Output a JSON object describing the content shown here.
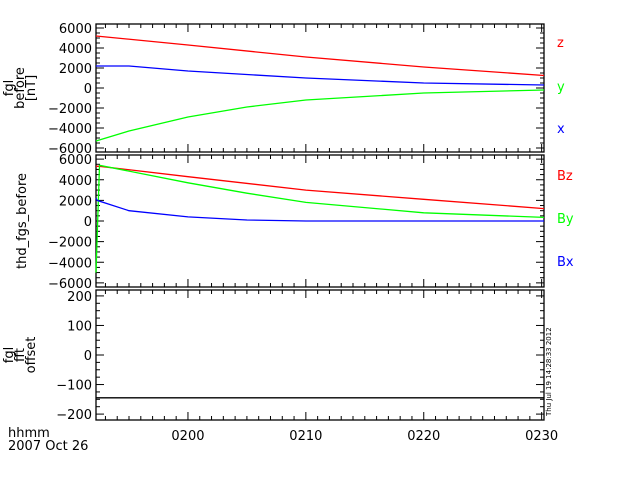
{
  "chart_data": [
    {
      "type": "line",
      "ylabel": [
        "fgl",
        "before",
        "[nT]"
      ],
      "ylim": [
        -6400,
        6400
      ],
      "yticks": [
        6000,
        4000,
        2000,
        0,
        -2000,
        -4000,
        -6000
      ],
      "ytick_labels": [
        "6000",
        "4000",
        "2000",
        "0",
        "−2000",
        "−4000",
        "−6000"
      ],
      "series": [
        {
          "name": "z",
          "color": "#ff0000",
          "x": [
            112.2,
            120,
            130,
            140,
            150.2
          ],
          "y": [
            5200,
            4300,
            3100,
            2100,
            1250
          ]
        },
        {
          "name": "y",
          "color": "#00ff00",
          "x": [
            112.2,
            115,
            120,
            125,
            130,
            140,
            150.2
          ],
          "y": [
            -5300,
            -4300,
            -2900,
            -1900,
            -1200,
            -500,
            -200
          ]
        },
        {
          "name": "x",
          "color": "#0000ff",
          "x": [
            112.2,
            115,
            120,
            130,
            140,
            150.2
          ],
          "y": [
            2200,
            2200,
            1700,
            1000,
            500,
            300
          ]
        }
      ]
    },
    {
      "type": "line",
      "ylabel": [
        "thd_fgs_before"
      ],
      "ylim": [
        -6400,
        6400
      ],
      "yticks": [
        6000,
        4000,
        2000,
        0,
        -2000,
        -4000,
        -6000
      ],
      "ytick_labels": [
        "6000",
        "4000",
        "2000",
        "0",
        "−2000",
        "−4000",
        "−6000"
      ],
      "series": [
        {
          "name": "Bz",
          "color": "#ff0000",
          "x": [
            112.2,
            112.5,
            120,
            130,
            140,
            150.2
          ],
          "y": [
            5300,
            5300,
            4300,
            3000,
            2100,
            1200
          ]
        },
        {
          "name": "By",
          "color": "#00ff00",
          "x": [
            112.2,
            112.5,
            120,
            125,
            130,
            140,
            150.2
          ],
          "y": [
            -5000,
            5400,
            3700,
            2700,
            1800,
            800,
            350
          ]
        },
        {
          "name": "Bx",
          "color": "#0000ff",
          "x": [
            112.2,
            112.3,
            115,
            120,
            125,
            130,
            150.2
          ],
          "y": [
            2200,
            2000,
            1000,
            400,
            100,
            0,
            0
          ]
        }
      ]
    },
    {
      "type": "line",
      "ylabel": [
        "fgl",
        "fft",
        "offset"
      ],
      "ylim": [
        -220,
        220
      ],
      "yticks": [
        200,
        100,
        0,
        -100,
        -200
      ],
      "ytick_labels": [
        "200",
        "100",
        "0",
        "−100",
        "−200"
      ],
      "series": [
        {
          "name": "offset",
          "color": "#000000",
          "x": [
            112.2,
            150.2
          ],
          "y": [
            -145,
            -145
          ]
        }
      ]
    }
  ],
  "xaxis": {
    "xlim": [
      112.2,
      150.2
    ],
    "ticks": [
      120,
      130,
      140,
      150
    ],
    "tick_labels": [
      "0200",
      "0210",
      "0220",
      "0230"
    ],
    "label": "hhmm",
    "date": "2007 Oct 26"
  },
  "timestamp": "Thu Jul 19 14:28:33 2012"
}
